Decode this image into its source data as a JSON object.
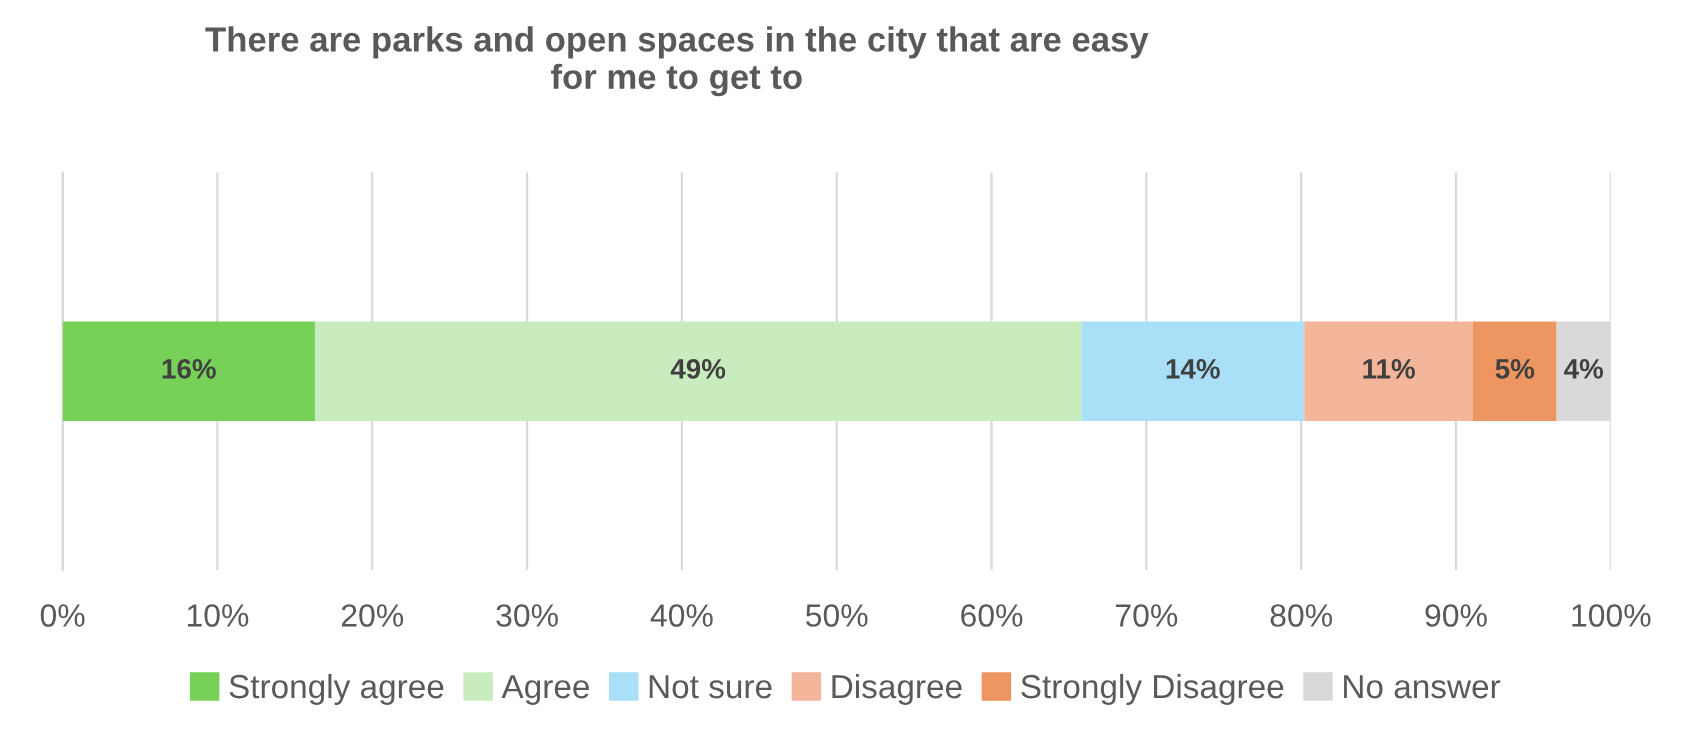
{
  "chart_data": {
    "type": "bar",
    "orientation": "horizontal",
    "stacked": true,
    "title": "There are parks and open spaces in the city that are easy\nfor me to get to",
    "categories": [
      null
    ],
    "series": [
      {
        "name": "Strongly agree",
        "color": "#77d158",
        "values": [
          16.3
        ],
        "value_labels": [
          "16%"
        ]
      },
      {
        "name": "Agree",
        "color": "#c9ecbf",
        "values": [
          49.5
        ],
        "value_labels": [
          "49%"
        ]
      },
      {
        "name": "Not sure",
        "color": "#a9dff7",
        "values": [
          14.4
        ],
        "value_labels": [
          "14%"
        ]
      },
      {
        "name": "Disagree",
        "color": "#f4b69a",
        "values": [
          10.9
        ],
        "value_labels": [
          "11%"
        ]
      },
      {
        "name": "Strongly Disagree",
        "color": "#ee9661",
        "values": [
          5.4
        ],
        "value_labels": [
          "5%"
        ]
      },
      {
        "name": "No answer",
        "color": "#d9d9d9",
        "values": [
          3.5
        ],
        "value_labels": [
          "4%"
        ]
      }
    ],
    "xlim": [
      0,
      100
    ],
    "xticks": [
      {
        "value": 0,
        "label": "0%"
      },
      {
        "value": 10,
        "label": "10%"
      },
      {
        "value": 20,
        "label": "20%"
      },
      {
        "value": 30,
        "label": "30%"
      },
      {
        "value": 40,
        "label": "40%"
      },
      {
        "value": 50,
        "label": "50%"
      },
      {
        "value": 60,
        "label": "60%"
      },
      {
        "value": 70,
        "label": "70%"
      },
      {
        "value": 80,
        "label": "80%"
      },
      {
        "value": 90,
        "label": "90%"
      },
      {
        "value": 100,
        "label": "100%"
      }
    ],
    "grid": "x",
    "legend": "bottom"
  }
}
